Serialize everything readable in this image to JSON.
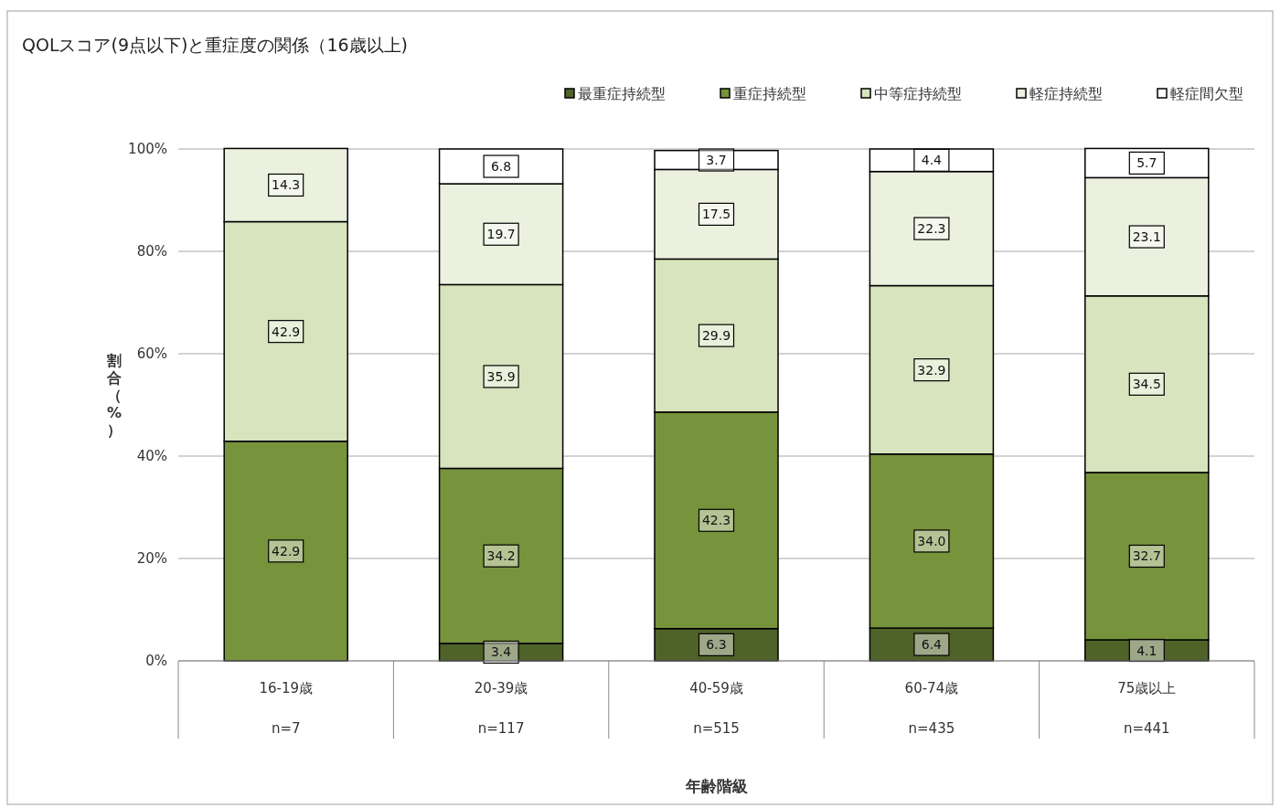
{
  "chart_data": {
    "type": "bar",
    "stacked": true,
    "title": "QOLスコア(9点以下)と重症度の関係（16歳以上)",
    "annotations": [
      "年齢階級"
    ],
    "ylabel": "割合（%）",
    "categories": [
      "16-19歳\nn=7",
      "20-39歳\nn=117",
      "40-59歳\nn=515",
      "60-74歳\nn=435",
      "75歳以上\nn=441"
    ],
    "series": [
      {
        "name": "最重症持続型",
        "color": "#4f6228",
        "values": [
          0,
          3.4,
          6.3,
          6.4,
          4.1
        ],
        "value_labels": [
          null,
          "3.4",
          "6.3",
          "6.4",
          "4.1"
        ]
      },
      {
        "name": "重症持続型",
        "color": "#77933c",
        "values": [
          42.9,
          34.2,
          42.3,
          34.0,
          32.7
        ],
        "value_labels": [
          "42.9",
          "34.2",
          "42.3",
          "34.0",
          "32.7"
        ]
      },
      {
        "name": "中等症持続型",
        "color": "#d7e4bd",
        "values": [
          42.9,
          35.9,
          29.9,
          32.9,
          34.5
        ],
        "value_labels": [
          "42.9",
          "35.9",
          "29.9",
          "32.9",
          "34.5"
        ]
      },
      {
        "name": "軽症持続型",
        "color": "#ebf1de",
        "values": [
          14.3,
          19.7,
          17.5,
          22.3,
          23.1
        ],
        "value_labels": [
          "14.3",
          "19.7",
          "17.5",
          "22.3",
          "23.1"
        ]
      },
      {
        "name": "軽症間欠型",
        "color": "#ffffff",
        "values": [
          0,
          6.8,
          3.7,
          4.4,
          5.7
        ],
        "value_labels": [
          null,
          "6.8",
          "3.7",
          "4.4",
          "5.7"
        ]
      }
    ],
    "ylim": [
      0,
      100
    ],
    "yticks": [
      {
        "value": 0,
        "label": "0%"
      },
      {
        "value": 20,
        "label": "20%"
      },
      {
        "value": 40,
        "label": "40%"
      },
      {
        "value": 60,
        "label": "60%"
      },
      {
        "value": 80,
        "label": "80%"
      },
      {
        "value": 100,
        "label": "100%"
      }
    ],
    "grid": "y",
    "legend": "top right"
  }
}
